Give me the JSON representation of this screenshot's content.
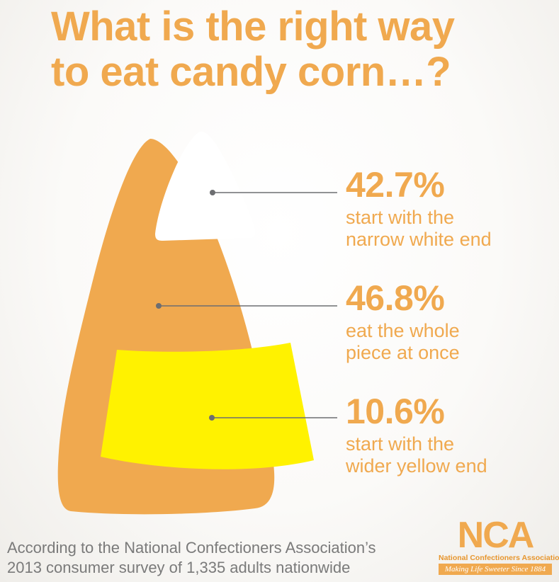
{
  "chart_data": {
    "type": "pie",
    "title_lines": [
      "What is the right way",
      "to eat candy corn…?"
    ],
    "segments": [
      {
        "part": "white",
        "value": 42.7,
        "value_label": "42.7%",
        "description": "start with the\nnarrow white end",
        "color": "#ffffff"
      },
      {
        "part": "orange",
        "value": 46.8,
        "value_label": "46.8%",
        "description": "eat the whole\npiece at once",
        "color": "#f0a94f"
      },
      {
        "part": "yellow",
        "value": 10.6,
        "value_label": "10.6%",
        "description": "start with the\nwider yellow end",
        "color": "#fff200"
      }
    ],
    "source": "According to the National Confectioners Association’s\n2013 consumer survey of 1,335 adults nationwide"
  },
  "logo": {
    "mark": "NCA",
    "name": "National Confectioners Association",
    "tagline": "Making Life Sweeter Since 1884"
  },
  "colors": {
    "accent": "#f0a94f",
    "yellow": "#fff200",
    "line": "#6d6e71"
  }
}
